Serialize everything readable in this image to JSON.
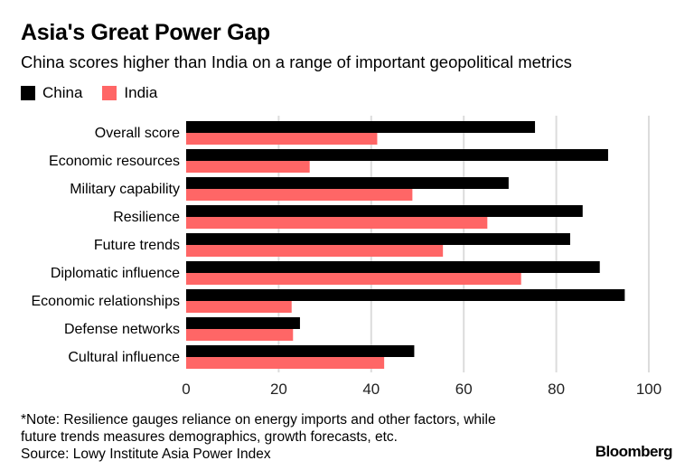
{
  "chart_data": {
    "type": "bar",
    "orientation": "horizontal",
    "title": "Asia's Great Power Gap",
    "subtitle": "China scores higher than India on a range of important geopolitical metrics",
    "categories": [
      "Overall score",
      "Economic resources",
      "Military capability",
      "Resilience",
      "Future trends",
      "Diplomatic influence",
      "Economic relationships",
      "Defense networks",
      "Cultural influence"
    ],
    "series": [
      {
        "name": "China",
        "color": "#000000",
        "values": [
          75.4,
          91.2,
          69.7,
          85.7,
          83.0,
          89.4,
          94.8,
          24.6,
          49.3
        ]
      },
      {
        "name": "India",
        "color": "#ff6666",
        "values": [
          41.3,
          26.7,
          48.9,
          65.1,
          55.5,
          72.4,
          22.8,
          23.1,
          42.8
        ]
      }
    ],
    "xlim": [
      0,
      100
    ],
    "xticks": [
      "0",
      "20",
      "40",
      "60",
      "80",
      "100"
    ],
    "grid": true,
    "legend": "top-left",
    "note_lines": [
      "*Note: Resilience gauges reliance on energy imports and other factors, while",
      "future trends measures demographics, growth forecasts, etc.",
      "Source: Lowy Institute Asia Power Index"
    ],
    "brand": "Bloomberg"
  }
}
